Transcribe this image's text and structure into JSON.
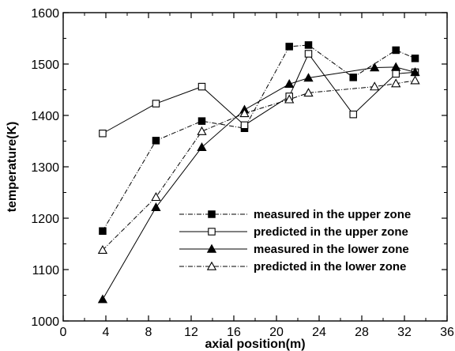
{
  "chart_data": {
    "type": "line",
    "xlabel": "axial position(m)",
    "ylabel": "temperature(K)",
    "xlim": [
      0,
      36
    ],
    "ylim": [
      1000,
      1600
    ],
    "xticks": [
      0,
      4,
      8,
      12,
      16,
      20,
      24,
      28,
      32,
      36
    ],
    "yticks": [
      1000,
      1100,
      1200,
      1300,
      1400,
      1500,
      1600
    ],
    "grid": false,
    "legend_position": "lower-right",
    "series": [
      {
        "name": "measured in the upper zone",
        "marker": "filled-square",
        "line_style": "dash-dot",
        "x": [
          3.7,
          8.7,
          13.0,
          17.0,
          21.2,
          23.0,
          27.2,
          31.2,
          33.0
        ],
        "y": [
          1175,
          1351,
          1389,
          1375,
          1534,
          1537,
          1474,
          1527,
          1511
        ]
      },
      {
        "name": "predicted in the upper zone",
        "marker": "open-square",
        "line_style": "solid",
        "x": [
          3.7,
          8.7,
          13.0,
          17.0,
          21.2,
          23.0,
          27.2,
          31.2,
          33.0
        ],
        "y": [
          1365,
          1423,
          1456,
          1381,
          1437,
          1520,
          1402,
          1481,
          1484
        ]
      },
      {
        "name": "measured in the lower zone",
        "marker": "filled-triangle",
        "line_style": "solid",
        "x": [
          3.7,
          8.7,
          13.0,
          17.0,
          21.2,
          23.0,
          29.2,
          31.2,
          33.0
        ],
        "y": [
          1042,
          1221,
          1338,
          1411,
          1461,
          1473,
          1493,
          1494,
          1484
        ]
      },
      {
        "name": "predicted in the lower zone",
        "marker": "open-triangle",
        "line_style": "dash-dot",
        "x": [
          3.7,
          8.7,
          13.0,
          17.0,
          21.2,
          23.0,
          29.2,
          31.2,
          33.0
        ],
        "y": [
          1138,
          1241,
          1369,
          1404,
          1431,
          1444,
          1456,
          1462,
          1468
        ]
      }
    ]
  }
}
